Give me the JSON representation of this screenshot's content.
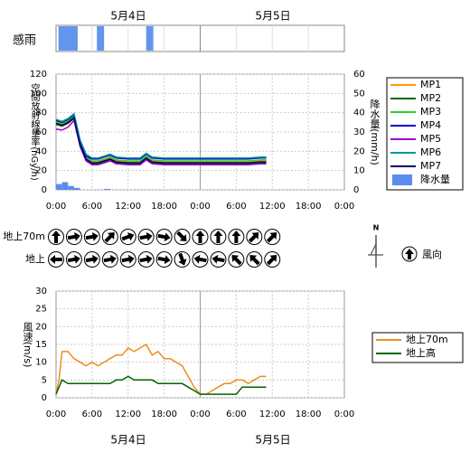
{
  "chart_data": [
    {
      "type": "timeline",
      "label": "感雨",
      "dates": [
        "5月4日",
        "5月5日"
      ],
      "xlim": [
        0,
        48
      ],
      "periods": [
        [
          0.4,
          3.6
        ],
        [
          6.8,
          8
        ],
        [
          15,
          16.2
        ]
      ],
      "color": "#6495ed"
    },
    {
      "type": "line",
      "ylabel": "空間放射線量率(nGy/h)",
      "y2label": "降水量(mm/h)",
      "xlim": [
        0,
        48
      ],
      "xticks": [
        {
          "value": 0,
          "label": "0:00"
        },
        {
          "value": 6,
          "label": "6:00"
        },
        {
          "value": 12,
          "label": "12:00"
        },
        {
          "value": 18,
          "label": "18:00"
        },
        {
          "value": 24,
          "label": "0:00"
        },
        {
          "value": 30,
          "label": "6:00"
        },
        {
          "value": 36,
          "label": "12:00"
        },
        {
          "value": 42,
          "label": "18:00"
        },
        {
          "value": 48,
          "label": "0:00"
        }
      ],
      "ylim": [
        0,
        120
      ],
      "yticks": [
        0,
        20,
        40,
        60,
        80,
        100,
        120
      ],
      "y2lim": [
        0,
        60
      ],
      "y2ticks": [
        0,
        10,
        20,
        30,
        40,
        50,
        60
      ],
      "grid": true,
      "x": [
        0,
        1,
        2,
        3,
        4,
        5,
        6,
        7,
        8,
        9,
        10,
        12,
        14,
        15,
        16,
        18,
        20,
        22,
        24,
        26,
        28,
        30,
        32,
        34,
        35
      ],
      "series": [
        {
          "name": "MP1",
          "color": "#ff9900",
          "values": [
            70,
            68,
            71,
            76,
            48,
            33,
            29,
            29,
            31,
            33,
            30,
            29,
            29,
            34,
            30,
            29,
            29,
            29,
            29,
            29,
            29,
            29,
            29,
            30,
            30
          ]
        },
        {
          "name": "MP2",
          "color": "#006400",
          "values": [
            68,
            66,
            69,
            74,
            46,
            31,
            27,
            27,
            29,
            31,
            28,
            27,
            27,
            32,
            28,
            27,
            27,
            27,
            27,
            27,
            27,
            27,
            27,
            28,
            28
          ]
        },
        {
          "name": "MP3",
          "color": "#33cc33",
          "values": [
            71,
            69,
            72,
            77,
            49,
            34,
            30,
            30,
            32,
            34,
            31,
            30,
            30,
            35,
            31,
            30,
            30,
            30,
            30,
            30,
            30,
            30,
            30,
            31,
            31
          ]
        },
        {
          "name": "MP4",
          "color": "#0000cc",
          "values": [
            72,
            70,
            73,
            78,
            50,
            35,
            32,
            32,
            34,
            36,
            33,
            32,
            32,
            37,
            33,
            32,
            32,
            32,
            32,
            32,
            32,
            32,
            32,
            33,
            33
          ]
        },
        {
          "name": "MP5",
          "color": "#9900cc",
          "values": [
            63,
            62,
            65,
            72,
            45,
            30,
            26,
            26,
            28,
            30,
            27,
            26,
            26,
            31,
            27,
            26,
            26,
            26,
            26,
            26,
            26,
            26,
            26,
            27,
            27
          ]
        },
        {
          "name": "MP6",
          "color": "#009999",
          "values": [
            73,
            71,
            74,
            79,
            52,
            37,
            33,
            33,
            35,
            37,
            34,
            33,
            33,
            38,
            34,
            33,
            33,
            33,
            33,
            33,
            33,
            33,
            33,
            34,
            34
          ]
        },
        {
          "name": "MP7",
          "color": "#000066",
          "values": [
            69,
            67,
            70,
            75,
            47,
            32,
            28,
            28,
            30,
            32,
            29,
            28,
            28,
            33,
            29,
            28,
            28,
            28,
            28,
            28,
            28,
            28,
            28,
            29,
            29
          ]
        },
        {
          "name": "降水量",
          "color": "#5b8def",
          "axis": "y2",
          "kind": "bar",
          "values": [
            3,
            4,
            2,
            1,
            0,
            0,
            0,
            0,
            0.5,
            0,
            0,
            0,
            0,
            0,
            0,
            0,
            0,
            0,
            0,
            0,
            0,
            0,
            0,
            0,
            0
          ]
        }
      ]
    },
    {
      "type": "wind-direction",
      "x": [
        0,
        3,
        6,
        9,
        12,
        15,
        18,
        21,
        24,
        27,
        30,
        33,
        36
      ],
      "xlim": [
        0,
        48
      ],
      "legend": "風向",
      "north": "N",
      "rows": [
        {
          "name": "地上70m",
          "values": [
            0,
            80,
            80,
            45,
            70,
            80,
            100,
            135,
            0,
            0,
            0,
            45,
            45
          ]
        },
        {
          "name": "地上",
          "values": [
            270,
            80,
            80,
            80,
            80,
            80,
            100,
            160,
            280,
            280,
            315,
            315,
            45
          ]
        }
      ]
    },
    {
      "type": "line",
      "ylabel": "風速(m/s)",
      "xlim": [
        0,
        48
      ],
      "xticks": [
        {
          "value": 0,
          "label": "0:00"
        },
        {
          "value": 6,
          "label": "6:00"
        },
        {
          "value": 12,
          "label": "12:00"
        },
        {
          "value": 18,
          "label": "18:00"
        },
        {
          "value": 24,
          "label": "0:00"
        },
        {
          "value": 30,
          "label": "6:00"
        },
        {
          "value": 36,
          "label": "12:00"
        },
        {
          "value": 42,
          "label": "18:00"
        },
        {
          "value": 48,
          "label": "0:00"
        }
      ],
      "ylim": [
        0,
        30
      ],
      "yticks": [
        0,
        5,
        10,
        15,
        20,
        25,
        30
      ],
      "grid": true,
      "x": [
        0,
        0.5,
        1,
        2,
        3,
        4,
        5,
        6,
        7,
        8,
        9,
        10,
        11,
        12,
        13,
        14,
        15,
        16,
        17,
        18,
        19,
        20,
        21,
        22,
        23,
        24,
        25,
        26,
        27,
        28,
        29,
        30,
        31,
        32,
        33,
        34,
        35
      ],
      "series": [
        {
          "name": "地上70m",
          "color": "#f08c1e",
          "values": [
            1,
            5,
            13,
            13,
            11,
            10,
            9,
            10,
            9,
            10,
            11,
            12,
            12,
            14,
            13,
            14,
            15,
            12,
            13,
            11,
            11,
            10,
            9,
            6,
            3,
            1,
            1,
            2,
            3,
            4,
            4,
            5,
            5,
            4,
            5,
            6,
            6
          ]
        },
        {
          "name": "地上高",
          "color": "#006400",
          "values": [
            1,
            3,
            5,
            4,
            4,
            4,
            4,
            4,
            4,
            4,
            4,
            5,
            5,
            6,
            5,
            5,
            5,
            5,
            4,
            4,
            4,
            4,
            4,
            3,
            2,
            1,
            1,
            1,
            1,
            1,
            1,
            1,
            3,
            3,
            3,
            3,
            3
          ]
        }
      ]
    }
  ]
}
